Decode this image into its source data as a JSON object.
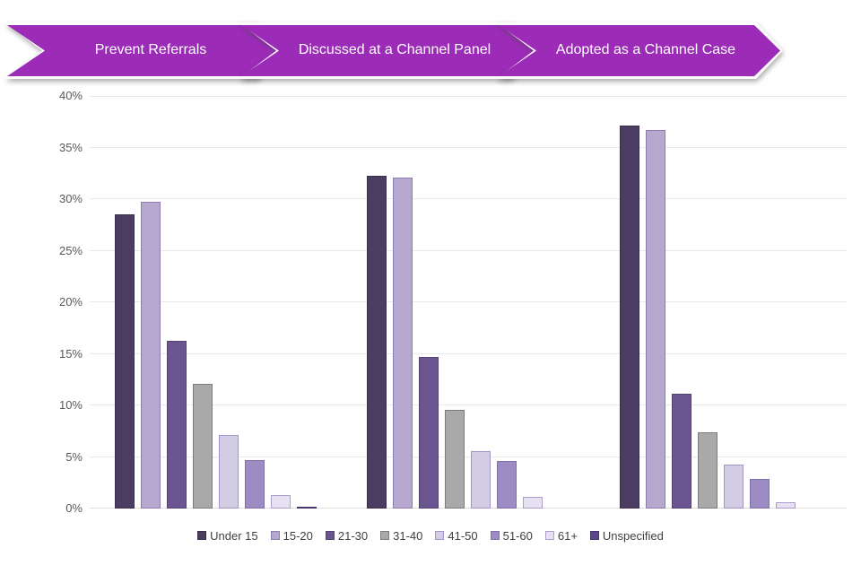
{
  "banners": [
    {
      "label": "Prevent Referrals"
    },
    {
      "label": "Discussed at a Channel Panel"
    },
    {
      "label": "Adopted as a Channel Case"
    }
  ],
  "colors": {
    "banner_fill": "#9C2BB8",
    "banner_border": "#FFFFFF",
    "grid_line": "#E9E9E9",
    "axis_text": "#595959",
    "legend_text": "#3F3F3F",
    "background": "#FFFFFF"
  },
  "chart_data": {
    "type": "bar",
    "title": "",
    "xlabel": "",
    "ylabel": "",
    "categories": [
      "Prevent Referrals",
      "Discussed at a Channel Panel",
      "Adopted as a Channel Case"
    ],
    "series": [
      {
        "name": "Under 15",
        "fill": "#4B3C61",
        "border": "#3A2E4C",
        "values": [
          28.5,
          32.3,
          37.1
        ]
      },
      {
        "name": "15-20",
        "fill": "#B5A7CE",
        "border": "#8E7DB2",
        "values": [
          29.7,
          32.1,
          36.7
        ]
      },
      {
        "name": "21-30",
        "fill": "#6B5590",
        "border": "#544273",
        "values": [
          16.3,
          14.7,
          11.1
        ]
      },
      {
        "name": "31-40",
        "fill": "#A9A9A9",
        "border": "#7C7C7C",
        "values": [
          12.1,
          9.6,
          7.4
        ]
      },
      {
        "name": "41-50",
        "fill": "#D3CCE5",
        "border": "#A294C4",
        "values": [
          7.1,
          5.6,
          4.3
        ]
      },
      {
        "name": "51-60",
        "fill": "#9D8CC4",
        "border": "#8171A9",
        "values": [
          4.7,
          4.6,
          2.9
        ]
      },
      {
        "name": "61+",
        "fill": "#E7E2F3",
        "border": "#AC9DCB",
        "values": [
          1.3,
          1.1,
          0.6
        ]
      },
      {
        "name": "Unspecified",
        "fill": "#5B4889",
        "border": "#46356A",
        "values": [
          0.2,
          0.0,
          0.0
        ]
      }
    ],
    "ylim": [
      0,
      40
    ],
    "ytick_step": 5,
    "ytick_labels": [
      "0%",
      "5%",
      "10%",
      "15%",
      "20%",
      "25%",
      "30%",
      "35%",
      "40%"
    ],
    "grid": true,
    "legend_position": "bottom"
  }
}
